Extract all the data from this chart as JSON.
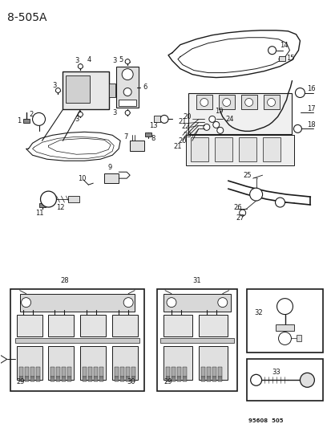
{
  "title": "8-505A",
  "bg": "#ffffff",
  "lc": "#1a1a1a",
  "watermark": "95608  505",
  "fw": 4.14,
  "fh": 5.33,
  "dpi": 100
}
